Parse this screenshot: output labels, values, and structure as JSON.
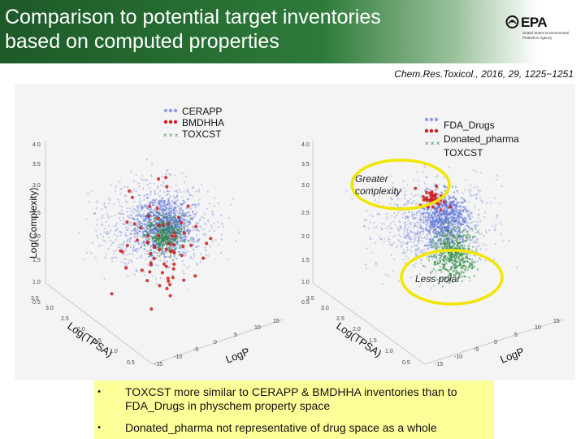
{
  "header": {
    "title_line1": "Comparison to potential target inventories",
    "title_line2": "based on computed properties"
  },
  "logo": {
    "wordmark": "EPA",
    "subtext": "United States Environmental Protection Agency"
  },
  "citation": "Chem.Res.Toxicol., 2016, 29, 1225−1251",
  "plot_left": {
    "legend": [
      "CERAPP",
      "BMDHHA",
      "TOXCST"
    ],
    "z_label": "Log(Complexity)",
    "x_label": "Log(TPSA)",
    "y_label": "LogP",
    "z_ticks": [
      "4.0",
      "3.5",
      "3.0",
      "2.5",
      "2.0",
      "1.5",
      "1.0",
      "0.5"
    ],
    "x_ticks": [
      "3.5",
      "3.0",
      "2.5",
      "2.0",
      "1.5",
      "1.0",
      "0.5"
    ],
    "y_ticks": [
      "15",
      "10",
      "5",
      "0",
      "-5",
      "-10",
      "-15"
    ]
  },
  "plot_right": {
    "legend": [
      "FDA_Drugs",
      "Donated_pharma",
      "TOXCST"
    ],
    "z_ticks": [
      "4.0",
      "3.5",
      "3.0",
      "2.5",
      "2.0",
      "1.5",
      "1.0",
      "0.5"
    ],
    "x_label": "Log(TPSA)",
    "y_label": "LogP",
    "x_ticks": [
      "3.5",
      "3.0",
      "2.5",
      "2.0",
      "1.5",
      "1.0",
      "0.5"
    ],
    "y_ticks": [
      "15",
      "10",
      "5",
      "0",
      "-5",
      "-10",
      "-15"
    ],
    "annotation_greater": "Greater complexity",
    "annotation_less": "Less polar"
  },
  "colors": {
    "header_green": "#2d7a3a",
    "series_blue": "#5a6fd8",
    "series_red": "#cc1f1f",
    "series_green": "#2e8b3e",
    "highlight_yellow": "#ffff99",
    "annotation_ring": "#f2e600"
  },
  "bullets": [
    "TOXCST more similar to CERAPP & BMDHHA inventories than to FDA_Drugs in physchem property space",
    "Donated_pharma not representative of drug space as a whole"
  ]
}
